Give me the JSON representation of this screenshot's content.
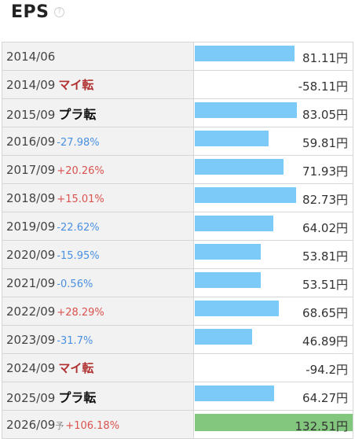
{
  "header": {
    "title": "EPS",
    "help_icon": "?"
  },
  "rows": [
    {
      "year": "2014/06",
      "change": "",
      "dir": "",
      "turn": "",
      "forecast": "",
      "value": 81.11,
      "display": "81.11円"
    },
    {
      "year": "2014/09",
      "change": "",
      "dir": "",
      "turn": "マイ転",
      "forecast": "",
      "value": -58.11,
      "display": "-58.11円"
    },
    {
      "year": "2015/09",
      "change": "",
      "dir": "",
      "turn": "プラ転",
      "forecast": "",
      "value": 83.05,
      "display": "83.05円"
    },
    {
      "year": "2016/09",
      "change": "-27.98%",
      "dir": "down",
      "turn": "",
      "forecast": "",
      "value": 59.81,
      "display": "59.81円"
    },
    {
      "year": "2017/09",
      "change": "+20.26%",
      "dir": "up",
      "turn": "",
      "forecast": "",
      "value": 71.93,
      "display": "71.93円"
    },
    {
      "year": "2018/09",
      "change": "+15.01%",
      "dir": "up",
      "turn": "",
      "forecast": "",
      "value": 82.73,
      "display": "82.73円"
    },
    {
      "year": "2019/09",
      "change": "-22.62%",
      "dir": "down",
      "turn": "",
      "forecast": "",
      "value": 64.02,
      "display": "64.02円"
    },
    {
      "year": "2020/09",
      "change": "-15.95%",
      "dir": "down",
      "turn": "",
      "forecast": "",
      "value": 53.81,
      "display": "53.81円"
    },
    {
      "year": "2021/09",
      "change": "-0.56%",
      "dir": "down",
      "turn": "",
      "forecast": "",
      "value": 53.51,
      "display": "53.51円"
    },
    {
      "year": "2022/09",
      "change": "+28.29%",
      "dir": "up",
      "turn": "",
      "forecast": "",
      "value": 68.65,
      "display": "68.65円"
    },
    {
      "year": "2023/09",
      "change": "-31.7%",
      "dir": "down",
      "turn": "",
      "forecast": "",
      "value": 46.89,
      "display": "46.89円"
    },
    {
      "year": "2024/09",
      "change": "",
      "dir": "",
      "turn": "マイ転",
      "forecast": "",
      "value": -94.2,
      "display": "-94.2円"
    },
    {
      "year": "2025/09",
      "change": "",
      "dir": "",
      "turn": "プラ転",
      "forecast": "",
      "value": 64.27,
      "display": "64.27円"
    },
    {
      "year": "2026/09",
      "change": "+106.18%",
      "dir": "up",
      "turn": "",
      "forecast": "予",
      "value": 132.51,
      "display": "132.51円"
    }
  ],
  "colors": {
    "bar": "#7ccaf8",
    "forecast_bar": "#83c77e",
    "up": "#d9534f",
    "down": "#4a90e2"
  }
}
